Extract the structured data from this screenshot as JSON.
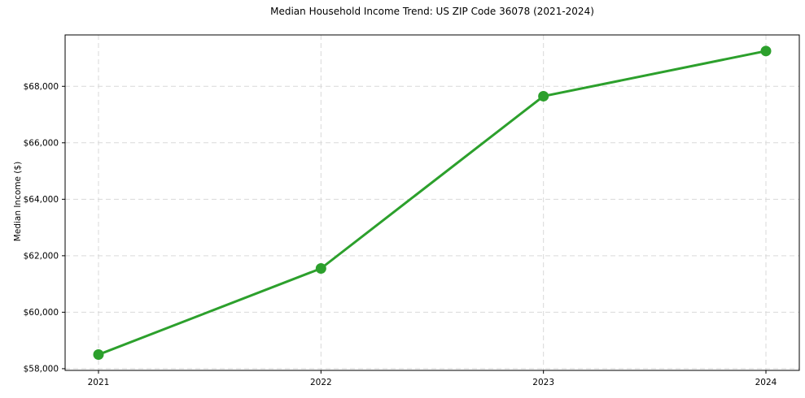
{
  "chart_data": {
    "type": "line",
    "title": "Median Household Income Trend: US ZIP Code 36078 (2021-2024)",
    "xlabel": "",
    "ylabel": "Median Income ($)",
    "x": [
      2021,
      2022,
      2023,
      2024
    ],
    "x_tick_labels": [
      "2021",
      "2022",
      "2023",
      "2024"
    ],
    "series": [
      {
        "name": "Median Household Income",
        "values": [
          58500,
          61550,
          67650,
          69250
        ],
        "color": "#2ca02c",
        "marker": "circle",
        "line_width": 3,
        "marker_radius": 6.5
      }
    ],
    "y_ticks": [
      58000,
      60000,
      62000,
      64000,
      66000,
      68000
    ],
    "y_tick_labels": [
      "$58,000",
      "$60,000",
      "$62,000",
      "$64,000",
      "$66,000",
      "$68,000"
    ],
    "xlim": [
      2020.85,
      2024.15
    ],
    "ylim": [
      57940,
      69820
    ],
    "grid": true,
    "grid_color": "#d9d9d9",
    "grid_dash": "6,4",
    "spine_color": "#000000",
    "background_color": "#ffffff",
    "legend": "none"
  }
}
